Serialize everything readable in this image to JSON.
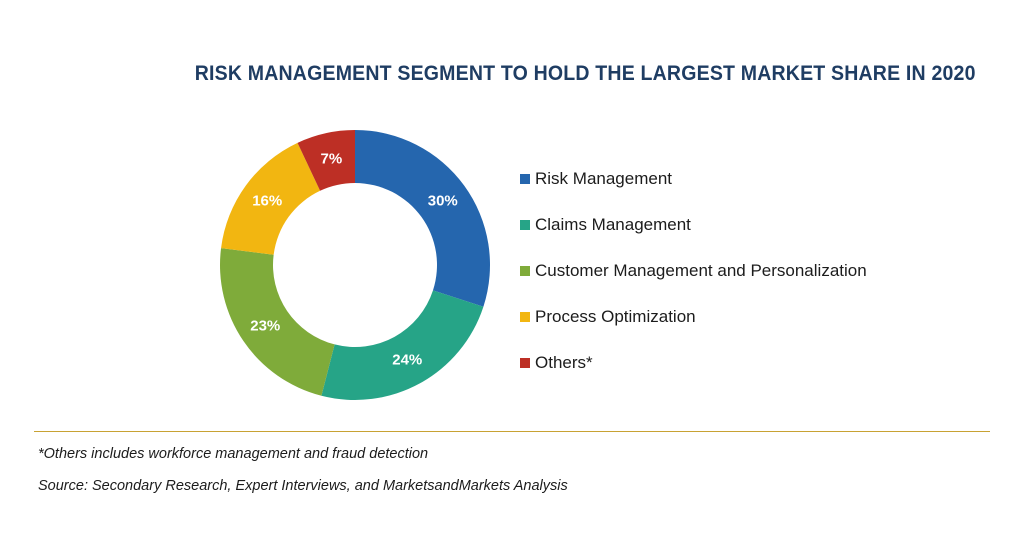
{
  "chart_data": {
    "type": "pie",
    "variant": "donut",
    "title": "RISK MANAGEMENT SEGMENT TO HOLD THE LARGEST MARKET SHARE IN 2020",
    "categories": [
      "Risk Management",
      "Claims Management",
      "Customer Management and Personalization",
      "Process Optimization",
      "Others*"
    ],
    "values": [
      30,
      24,
      23,
      16,
      7
    ],
    "value_labels": [
      "30%",
      "24%",
      "23%",
      "16%",
      "7%"
    ],
    "colors": [
      "#2566ae",
      "#26a487",
      "#7fab3a",
      "#f2b611",
      "#bd2f25"
    ],
    "legend_position": "right"
  },
  "footnotes": {
    "others_note": "*Others includes workforce management and fraud detection",
    "source": "Source: Secondary Research, Expert Interviews, and MarketsandMarkets Analysis"
  }
}
